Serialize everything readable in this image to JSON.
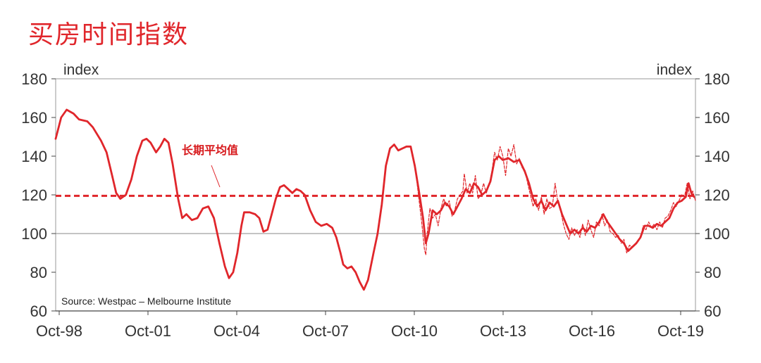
{
  "title": "买房时间指数",
  "chart_data": {
    "type": "line",
    "ylabel_left": "index",
    "ylabel_right": "index",
    "ylim": [
      60,
      180
    ],
    "yticks": [
      60,
      80,
      100,
      120,
      140,
      160,
      180
    ],
    "xticks": [
      "Oct-98",
      "Oct-01",
      "Oct-04",
      "Oct-07",
      "Oct-10",
      "Oct-13",
      "Oct-16",
      "Oct-19"
    ],
    "grid": "horizontal line at 100",
    "annotation": "长期平均值",
    "source": "Source: Westpac – Melbourne Institute",
    "colors": {
      "series": "#e0262b",
      "text": "#333333"
    },
    "series": [
      {
        "style": "solid",
        "points": [
          [
            1998.75,
            149
          ],
          [
            1998.95,
            160
          ],
          [
            1999.15,
            164
          ],
          [
            1999.4,
            162
          ],
          [
            1999.6,
            159
          ],
          [
            1999.9,
            158
          ],
          [
            2000.1,
            155
          ],
          [
            2000.4,
            148
          ],
          [
            2000.6,
            142
          ],
          [
            2000.8,
            130
          ],
          [
            2000.95,
            121
          ],
          [
            2001.1,
            118
          ],
          [
            2001.3,
            120
          ],
          [
            2001.5,
            128
          ],
          [
            2001.7,
            140
          ],
          [
            2001.9,
            148
          ],
          [
            2002.05,
            149
          ],
          [
            2002.2,
            147
          ],
          [
            2002.4,
            142
          ],
          [
            2002.55,
            145
          ],
          [
            2002.7,
            149
          ],
          [
            2002.85,
            147
          ],
          [
            2003.0,
            136
          ],
          [
            2003.2,
            118
          ],
          [
            2003.35,
            108
          ],
          [
            2003.5,
            110
          ],
          [
            2003.7,
            107
          ],
          [
            2003.9,
            108
          ],
          [
            2004.1,
            113
          ],
          [
            2004.3,
            114
          ],
          [
            2004.5,
            108
          ],
          [
            2004.7,
            95
          ],
          [
            2004.9,
            83
          ],
          [
            2005.05,
            77
          ],
          [
            2005.2,
            80
          ],
          [
            2005.35,
            90
          ],
          [
            2005.5,
            104
          ],
          [
            2005.6,
            111
          ],
          [
            2005.8,
            111
          ],
          [
            2006.0,
            110
          ],
          [
            2006.15,
            108
          ],
          [
            2006.3,
            101
          ],
          [
            2006.45,
            102
          ],
          [
            2006.6,
            110
          ],
          [
            2006.75,
            118
          ],
          [
            2006.9,
            124
          ],
          [
            2007.05,
            125
          ],
          [
            2007.2,
            123
          ],
          [
            2007.35,
            121
          ],
          [
            2007.5,
            123
          ],
          [
            2007.65,
            122
          ],
          [
            2007.8,
            120
          ],
          [
            2008.0,
            112
          ],
          [
            2008.2,
            106
          ],
          [
            2008.4,
            104
          ],
          [
            2008.6,
            105
          ],
          [
            2008.8,
            103
          ],
          [
            2008.95,
            98
          ],
          [
            2009.1,
            90
          ],
          [
            2009.2,
            84
          ],
          [
            2009.35,
            82
          ],
          [
            2009.5,
            83
          ],
          [
            2009.65,
            80
          ],
          [
            2009.8,
            75
          ],
          [
            2009.95,
            71
          ],
          [
            2010.1,
            76
          ],
          [
            2010.3,
            90
          ],
          [
            2010.45,
            100
          ],
          [
            2010.6,
            115
          ],
          [
            2010.75,
            135
          ],
          [
            2010.9,
            144
          ],
          [
            2011.05,
            146
          ],
          [
            2011.2,
            143
          ],
          [
            2011.35,
            144
          ],
          [
            2011.5,
            145
          ],
          [
            2011.65,
            145
          ],
          [
            2011.8,
            135
          ],
          [
            2011.95,
            122
          ],
          [
            2012.1,
            108
          ],
          [
            2012.2,
            95
          ],
          [
            2012.3,
            100
          ],
          [
            2012.45,
            112
          ],
          [
            2012.6,
            110
          ],
          [
            2012.75,
            112
          ],
          [
            2012.9,
            116
          ],
          [
            2013.05,
            114
          ],
          [
            2013.2,
            110
          ],
          [
            2013.35,
            114
          ],
          [
            2013.5,
            118
          ],
          [
            2013.65,
            123
          ],
          [
            2013.8,
            121
          ],
          [
            2013.95,
            126
          ],
          [
            2014.1,
            124
          ],
          [
            2014.25,
            120
          ],
          [
            2014.4,
            122
          ],
          [
            2014.55,
            127
          ],
          [
            2014.7,
            138
          ],
          [
            2014.85,
            140
          ],
          [
            2015.0,
            138
          ],
          [
            2015.2,
            139
          ],
          [
            2015.4,
            137
          ],
          [
            2015.6,
            138
          ],
          [
            2015.8,
            132
          ],
          [
            2015.95,
            126
          ],
          [
            2016.1,
            118
          ],
          [
            2016.25,
            114
          ],
          [
            2016.4,
            117
          ],
          [
            2016.55,
            112
          ],
          [
            2016.7,
            116
          ],
          [
            2016.85,
            114
          ],
          [
            2017.0,
            117
          ],
          [
            2017.15,
            110
          ],
          [
            2017.3,
            105
          ],
          [
            2017.45,
            100
          ],
          [
            2017.6,
            102
          ],
          [
            2017.75,
            100
          ],
          [
            2017.9,
            103
          ],
          [
            2018.05,
            101
          ],
          [
            2018.2,
            104
          ],
          [
            2018.35,
            103
          ],
          [
            2018.5,
            106
          ],
          [
            2018.65,
            110
          ],
          [
            2018.8,
            106
          ],
          [
            2018.95,
            103
          ],
          [
            2019.1,
            100
          ],
          [
            2019.25,
            97
          ],
          [
            2019.4,
            95
          ],
          [
            2019.55,
            91
          ],
          [
            2019.7,
            93
          ],
          [
            2019.85,
            95
          ],
          [
            2020.0,
            98
          ],
          [
            2020.15,
            104
          ],
          [
            2020.3,
            104
          ],
          [
            2020.45,
            103
          ],
          [
            2020.6,
            105
          ],
          [
            2020.75,
            104
          ],
          [
            2020.9,
            106
          ],
          [
            2021.05,
            108
          ],
          [
            2021.2,
            113
          ],
          [
            2021.35,
            116
          ],
          [
            2021.5,
            117
          ],
          [
            2021.65,
            119
          ],
          [
            2021.75,
            126
          ],
          [
            2021.85,
            121
          ],
          [
            2021.95,
            119
          ]
        ]
      },
      {
        "style": "dashed",
        "points": [
          [
            2011.85,
            130
          ],
          [
            2011.95,
            118
          ],
          [
            2012.05,
            106
          ],
          [
            2012.15,
            92
          ],
          [
            2012.2,
            89
          ],
          [
            2012.25,
            100
          ],
          [
            2012.35,
            113
          ],
          [
            2012.45,
            108
          ],
          [
            2012.55,
            110
          ],
          [
            2012.65,
            104
          ],
          [
            2012.75,
            113
          ],
          [
            2012.85,
            118
          ],
          [
            2012.95,
            114
          ],
          [
            2013.05,
            117
          ],
          [
            2013.15,
            109
          ],
          [
            2013.25,
            112
          ],
          [
            2013.35,
            118
          ],
          [
            2013.45,
            120
          ],
          [
            2013.55,
            122
          ],
          [
            2013.6,
            131
          ],
          [
            2013.7,
            121
          ],
          [
            2013.8,
            126
          ],
          [
            2013.9,
            121
          ],
          [
            2014.0,
            130
          ],
          [
            2014.1,
            118
          ],
          [
            2014.2,
            120
          ],
          [
            2014.3,
            126
          ],
          [
            2014.4,
            121
          ],
          [
            2014.5,
            125
          ],
          [
            2014.6,
            132
          ],
          [
            2014.7,
            142
          ],
          [
            2014.8,
            138
          ],
          [
            2014.9,
            145
          ],
          [
            2015.0,
            140
          ],
          [
            2015.1,
            130
          ],
          [
            2015.2,
            144
          ],
          [
            2015.3,
            140
          ],
          [
            2015.4,
            146
          ],
          [
            2015.5,
            136
          ],
          [
            2015.6,
            139
          ],
          [
            2015.7,
            134
          ],
          [
            2015.8,
            133
          ],
          [
            2015.9,
            126
          ],
          [
            2016.0,
            120
          ],
          [
            2016.1,
            114
          ],
          [
            2016.2,
            118
          ],
          [
            2016.3,
            112
          ],
          [
            2016.4,
            119
          ],
          [
            2016.5,
            110
          ],
          [
            2016.6,
            118
          ],
          [
            2016.7,
            113
          ],
          [
            2016.8,
            114
          ],
          [
            2016.9,
            126
          ],
          [
            2017.0,
            116
          ],
          [
            2017.1,
            112
          ],
          [
            2017.2,
            105
          ],
          [
            2017.3,
            100
          ],
          [
            2017.4,
            97
          ],
          [
            2017.5,
            103
          ],
          [
            2017.6,
            99
          ],
          [
            2017.7,
            102
          ],
          [
            2017.8,
            98
          ],
          [
            2017.9,
            105
          ],
          [
            2018.0,
            99
          ],
          [
            2018.1,
            107
          ],
          [
            2018.2,
            102
          ],
          [
            2018.3,
            98
          ],
          [
            2018.4,
            106
          ],
          [
            2018.5,
            104
          ],
          [
            2018.6,
            110
          ],
          [
            2018.7,
            104
          ],
          [
            2018.8,
            107
          ],
          [
            2018.9,
            101
          ],
          [
            2019.0,
            100
          ],
          [
            2019.1,
            98
          ],
          [
            2019.2,
            99
          ],
          [
            2019.3,
            95
          ],
          [
            2019.4,
            97
          ],
          [
            2019.5,
            90
          ],
          [
            2019.6,
            94
          ],
          [
            2019.7,
            93
          ],
          [
            2019.85,
            95
          ],
          [
            2020.0,
            98
          ],
          [
            2020.1,
            104
          ],
          [
            2020.2,
            102
          ],
          [
            2020.3,
            106
          ],
          [
            2020.4,
            103
          ],
          [
            2020.5,
            105
          ],
          [
            2020.6,
            102
          ],
          [
            2020.7,
            106
          ],
          [
            2020.8,
            103
          ],
          [
            2020.9,
            108
          ],
          [
            2021.0,
            109
          ],
          [
            2021.1,
            112
          ],
          [
            2021.2,
            116
          ],
          [
            2021.3,
            114
          ],
          [
            2021.4,
            117
          ],
          [
            2021.5,
            120
          ],
          [
            2021.6,
            119
          ],
          [
            2021.7,
            126
          ],
          [
            2021.8,
            118
          ],
          [
            2021.9,
            122
          ],
          [
            2022.0,
            117
          ]
        ]
      }
    ],
    "reference_line": {
      "value": 119.5,
      "style": "dashed"
    }
  }
}
